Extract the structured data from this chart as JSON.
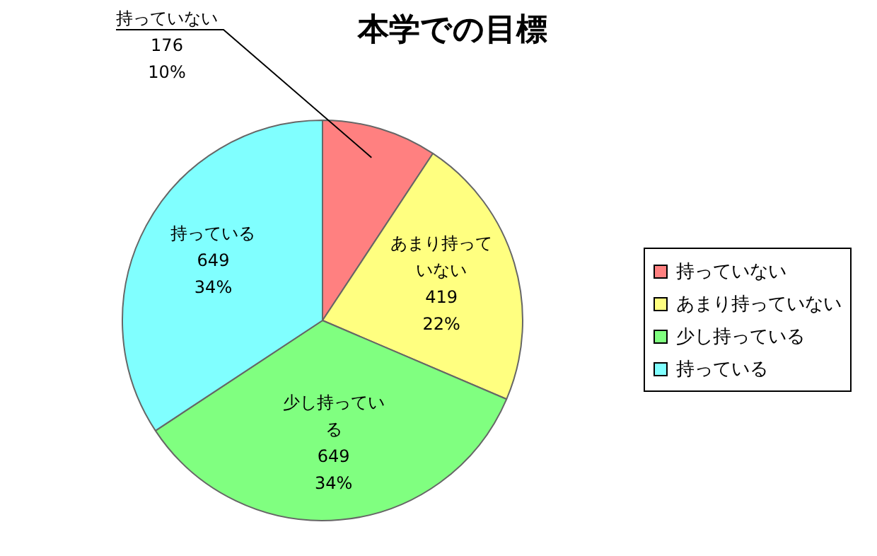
{
  "chart_data": {
    "type": "pie",
    "title": "本学での目標",
    "categories": [
      "持っていない",
      "あまり持っていない",
      "少し持っている",
      "持っている"
    ],
    "values": [
      176,
      419,
      649,
      649
    ],
    "value_labels": [
      "176\n10%",
      "419\n22%",
      "649\n34%",
      "649\n34%"
    ],
    "colors": [
      "#ff8080",
      "#ffff80",
      "#80ff80",
      "#80ffff"
    ],
    "legend": "right"
  }
}
